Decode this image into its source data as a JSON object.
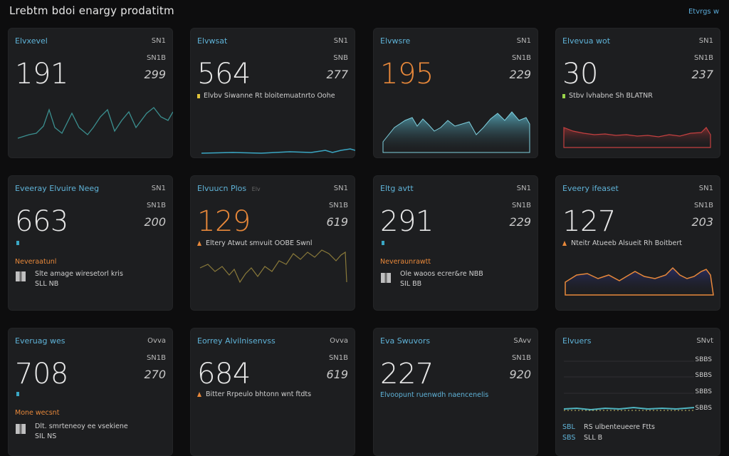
{
  "app": {
    "title": "Lrebtm bdoi enargy prodatitm",
    "top_link": "Etvrgs w"
  },
  "colors": {
    "bg": "#0d0d0e",
    "card": "#1d1e20",
    "blue": "#5fb3d8",
    "orange": "#e8883a",
    "red": "#c43a3a"
  },
  "cards": [
    {
      "title": "Elvxevel",
      "badge_top": "SN1",
      "badge_mid": "SN1B",
      "value": "191",
      "side": "299",
      "note": ""
    },
    {
      "title": "Elvwsat",
      "badge_top": "SN1",
      "badge_mid": "SNB",
      "value": "564",
      "side": "277",
      "note": "Elvbv Siwanne Rt bloitemuatnrto Oohe"
    },
    {
      "title": "Elvwsre",
      "badge_top": "SN1",
      "badge_mid": "SN1B",
      "value": "195",
      "side": "229",
      "note": ""
    },
    {
      "title": "Elvevua wot",
      "badge_top": "SN1",
      "badge_mid": "SN1B",
      "value": "30",
      "side": "237",
      "note": "Stbv lvhabne Sh BLATNR"
    },
    {
      "title": "Eveeray Elvuire Neeg",
      "badge_top": "SN1",
      "badge_mid": "SN1B",
      "value": "663",
      "side": "200",
      "sub_title": "Neveraatunl",
      "line1": "Slte amage wiresetorl kris",
      "line2": "SLL NB"
    },
    {
      "title": "Elvuucn Plos",
      "title_tag": "Elv",
      "badge_top": "SN1",
      "badge_mid": "SN1B",
      "value": "129",
      "side": "619",
      "note": "Eltery Atwut smvuit OOBE Swnl"
    },
    {
      "title": "Eltg avtt",
      "badge_top": "SN1",
      "badge_mid": "SN1B",
      "value": "291",
      "side": "229",
      "sub_title": "Neveraunrawtt",
      "line1": "Ole waoos ecrer&re NBB",
      "line2": "SIL BB"
    },
    {
      "title": "Eveery ifeaset",
      "badge_top": "SN1",
      "badge_mid": "SN1B",
      "value": "127",
      "side": "203",
      "note": "Nteitr Atueeb Alsueit Rh Boitbert"
    },
    {
      "title": "Everuag wes",
      "badge_top": "Ovva",
      "badge_mid": "SN1B",
      "value": "708",
      "side": "270",
      "sub_title": "Mone wecsnt",
      "line1": "Dlt. smrteneoy ee vsekiene",
      "line2": "SIL NS"
    },
    {
      "title": "Eorrey Alvilnisenvss",
      "badge_top": "Ovva",
      "badge_mid": "SN1B",
      "value": "684",
      "side": "619",
      "note": "Bitter Rrpeulo bhtonn wnt ftdts"
    },
    {
      "title": "Eva Swuvors",
      "badge_top": "SAvv",
      "badge_mid": "SN1B",
      "value": "227",
      "side": "920",
      "blue_note": "Elvoopunt ruenwdh naencenelis"
    },
    {
      "title": "Elvuers",
      "badge_top": "SNvt",
      "badge_mid": "SBBS",
      "value": "",
      "side": "",
      "axis": [
        "SBBS",
        "SBBS",
        "SBBS",
        "SBBS"
      ],
      "line1_tag": "SBL",
      "line1": "RS  ulbenteueere Ftts",
      "line2_tag": "SBS",
      "line2": "SLL B"
    }
  ]
}
